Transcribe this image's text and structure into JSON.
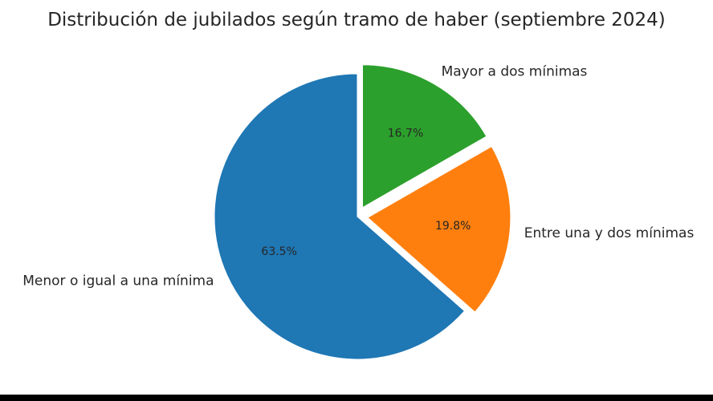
{
  "chart_data": {
    "type": "pie",
    "title": "Distribución de jubilados según tramo de haber (septiembre 2024)",
    "slices": [
      {
        "label": "Menor o igual a una mínima",
        "value": 63.5,
        "pct_label": "63.5%",
        "color": "#1f77b4",
        "exploded": false
      },
      {
        "label": "Entre una y dos mínimas",
        "value": 19.8,
        "pct_label": "19.8%",
        "color": "#ff7f0e",
        "exploded": true
      },
      {
        "label": "Mayor a dos mínimas",
        "value": 16.7,
        "pct_label": "16.7%",
        "color": "#2ca02c",
        "exploded": true
      }
    ],
    "start_angle": 90,
    "direction": "counterclockwise"
  }
}
